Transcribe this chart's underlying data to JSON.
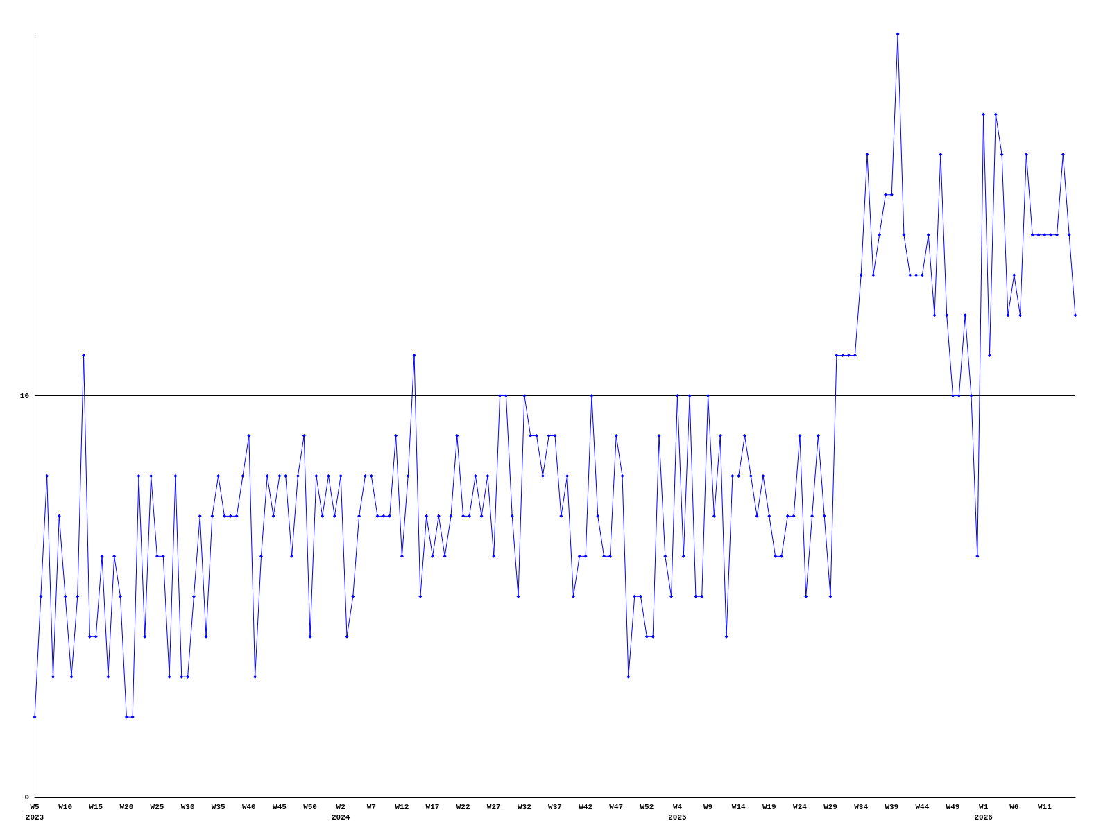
{
  "chart_data": {
    "type": "line",
    "categories": [
      "W5\n2023",
      null,
      null,
      null,
      null,
      "W10",
      null,
      null,
      null,
      null,
      "W15",
      null,
      null,
      null,
      null,
      "W20",
      null,
      null,
      null,
      null,
      "W25",
      null,
      null,
      null,
      null,
      "W30",
      null,
      null,
      null,
      null,
      "W35",
      null,
      null,
      null,
      null,
      "W40",
      null,
      null,
      null,
      null,
      "W45",
      null,
      null,
      null,
      null,
      "W50",
      null,
      null,
      null,
      null,
      "W2\n2024",
      null,
      null,
      null,
      null,
      "W7",
      null,
      null,
      null,
      null,
      "W12",
      null,
      null,
      null,
      null,
      "W17",
      null,
      null,
      null,
      null,
      "W22",
      null,
      null,
      null,
      null,
      "W27",
      null,
      null,
      null,
      null,
      "W32",
      null,
      null,
      null,
      null,
      "W37",
      null,
      null,
      null,
      null,
      "W42",
      null,
      null,
      null,
      null,
      "W47",
      null,
      null,
      null,
      null,
      "W52",
      null,
      null,
      null,
      null,
      "W4\n2025",
      null,
      null,
      null,
      null,
      "W9",
      null,
      null,
      null,
      null,
      "W14",
      null,
      null,
      null,
      null,
      "W19",
      null,
      null,
      null,
      null,
      "W24",
      null,
      null,
      null,
      null,
      "W29",
      null,
      null,
      null,
      null,
      "W34",
      null,
      null,
      null,
      null,
      "W39",
      null,
      null,
      null,
      null,
      "W44",
      null,
      null,
      null,
      null,
      "W49",
      null,
      null,
      null,
      null,
      "W1\n2026",
      null,
      null,
      null,
      null,
      "W6",
      null,
      null,
      null,
      null,
      "W11",
      null,
      null,
      null,
      null,
      null
    ],
    "series": [
      {
        "color": "#0000ff",
        "values": [
          2,
          5,
          8,
          3,
          7,
          5,
          3,
          5,
          11,
          4,
          4,
          6,
          3,
          6,
          5,
          2,
          2,
          8,
          4,
          8,
          6,
          6,
          3,
          8,
          3,
          3,
          5,
          7,
          4,
          7,
          8,
          7,
          7,
          7,
          8,
          9,
          3,
          6,
          8,
          7,
          8,
          8,
          6,
          8,
          9,
          4,
          8,
          7,
          8,
          7,
          8,
          4,
          5,
          7,
          8,
          8,
          7,
          7,
          7,
          9,
          6,
          8,
          11,
          5,
          7,
          6,
          7,
          6,
          7,
          9,
          7,
          7,
          8,
          7,
          8,
          6,
          10,
          10,
          7,
          5,
          10,
          9,
          9,
          8,
          9,
          9,
          7,
          8,
          5,
          6,
          6,
          10,
          7,
          6,
          6,
          9,
          8,
          3,
          5,
          5,
          4,
          4,
          9,
          6,
          5,
          10,
          6,
          10,
          5,
          5,
          10,
          7,
          9,
          4,
          8,
          8,
          9,
          8,
          7,
          8,
          7,
          6,
          6,
          7,
          7,
          9,
          5,
          7,
          9,
          7,
          5,
          11,
          11,
          11,
          11,
          13,
          16,
          13,
          14,
          15,
          15,
          19,
          14,
          13,
          13,
          13,
          14,
          12,
          16,
          12,
          10,
          10,
          12,
          10,
          6,
          17,
          11,
          17,
          16,
          12,
          13,
          12,
          16,
          14,
          14,
          14,
          14,
          14,
          16,
          14,
          12
        ]
      }
    ],
    "ylim": [
      0,
      19
    ],
    "yticks": [
      0,
      10
    ],
    "grid": "y",
    "marker": "diamond",
    "line_style": "solid"
  }
}
